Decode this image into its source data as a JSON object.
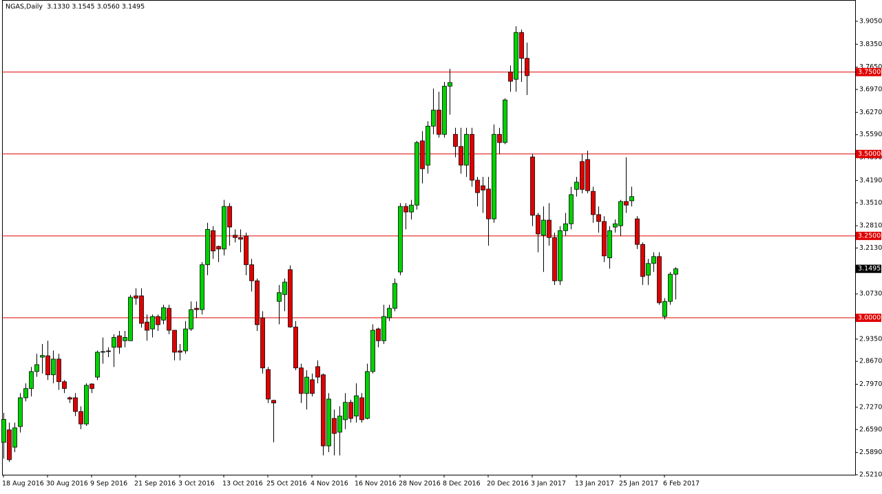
{
  "chart_data": {
    "type": "candlestick",
    "title": "NGAS,Daily  3.1330 3.1545 3.0560 3.1495",
    "x": [
      "18 Aug 2016",
      null,
      null,
      null,
      null,
      null,
      null,
      null,
      "30 Aug 2016",
      null,
      null,
      null,
      null,
      null,
      null,
      null,
      "9 Sep 2016",
      null,
      null,
      null,
      null,
      null,
      null,
      null,
      "21 Sep 2016",
      null,
      null,
      null,
      null,
      null,
      null,
      null,
      "3 Oct 2016",
      null,
      null,
      null,
      null,
      null,
      null,
      null,
      "13 Oct 2016",
      null,
      null,
      null,
      null,
      null,
      null,
      null,
      "25 Oct 2016",
      null,
      null,
      null,
      null,
      null,
      null,
      null,
      "4 Nov 2016",
      null,
      null,
      null,
      null,
      null,
      null,
      null,
      "16 Nov 2016",
      null,
      null,
      null,
      null,
      null,
      null,
      null,
      "28 Nov 2016",
      null,
      null,
      null,
      null,
      null,
      null,
      null,
      "8 Dec 2016",
      null,
      null,
      null,
      null,
      null,
      null,
      null,
      "20 Dec 2016",
      null,
      null,
      null,
      null,
      null,
      null,
      null,
      "3 Jan 2017",
      null,
      null,
      null,
      null,
      null,
      null,
      null,
      "13 Jan 2017",
      null,
      null,
      null,
      null,
      null,
      null,
      null,
      "25 Jan 2017",
      null,
      null,
      null,
      null,
      null,
      null,
      null,
      "6 Feb 2017",
      null,
      null
    ],
    "open": [
      2.62,
      2.658,
      2.605,
      2.668,
      2.756,
      2.784,
      2.836,
      2.88,
      2.884,
      2.826,
      2.874,
      2.805,
      2.756,
      2.756,
      2.714,
      2.676,
      2.798,
      2.819,
      2.895,
      2.899,
      2.91,
      2.945,
      2.93,
      2.93,
      3.067,
      3.067,
      2.987,
      2.966,
      3.004,
      2.993,
      3.029,
      2.962,
      2.899,
      2.899,
      2.966,
      3.029,
      3.025,
      3.162,
      3.266,
      3.218,
      3.21,
      3.34,
      3.252,
      3.245,
      3.25,
      3.162,
      3.113,
      3.0,
      2.842,
      2.748,
      3.05,
      3.071,
      3.147,
      2.972,
      2.847,
      2.769,
      2.811,
      2.851,
      2.826,
      2.609,
      2.693,
      2.651,
      2.689,
      2.742,
      2.7,
      2.756,
      2.693,
      2.836,
      2.966,
      2.93,
      3.0,
      3.029,
      3.14,
      3.34,
      3.323,
      3.344,
      3.54,
      3.466,
      3.585,
      3.634,
      3.56,
      3.707,
      3.56,
      3.523,
      3.466,
      3.56,
      3.42,
      3.403,
      3.393,
      3.302,
      3.56,
      3.535,
      3.75,
      3.728,
      3.871,
      3.792,
      3.491,
      3.313,
      3.252,
      3.298,
      3.245,
      3.113,
      3.266,
      3.287,
      3.392,
      3.477,
      3.483,
      3.386,
      3.315,
      3.294,
      3.183,
      3.277,
      3.281,
      3.355,
      3.357,
      3.302,
      3.224,
      3.13,
      3.166,
      3.187,
      3.004,
      3.05,
      3.133
    ],
    "high": [
      2.71,
      2.68,
      2.68,
      2.77,
      2.8,
      2.85,
      2.89,
      2.92,
      2.93,
      2.9,
      2.89,
      2.81,
      2.76,
      2.77,
      2.73,
      2.8,
      2.8,
      2.9,
      2.94,
      2.91,
      2.95,
      2.96,
      2.96,
      3.07,
      3.09,
      3.09,
      3.01,
      3.01,
      3.01,
      3.04,
      3.04,
      2.96,
      2.92,
      2.99,
      3.05,
      3.05,
      3.17,
      3.29,
      3.28,
      3.22,
      3.36,
      3.35,
      3.27,
      3.27,
      3.26,
      3.18,
      3.12,
      3.02,
      2.85,
      2.75,
      3.1,
      3.12,
      3.16,
      2.99,
      2.86,
      2.84,
      2.83,
      2.87,
      2.83,
      2.77,
      2.72,
      2.73,
      2.77,
      2.75,
      2.8,
      2.77,
      2.86,
      2.98,
      2.97,
      3.04,
      3.04,
      3.12,
      3.35,
      3.35,
      3.36,
      3.54,
      3.57,
      3.6,
      3.7,
      3.69,
      3.72,
      3.76,
      3.58,
      3.58,
      3.58,
      3.58,
      3.43,
      3.43,
      3.43,
      3.59,
      3.58,
      3.67,
      3.77,
      3.89,
      3.88,
      3.84,
      3.5,
      3.32,
      3.34,
      3.35,
      3.26,
      3.28,
      3.32,
      3.4,
      3.43,
      3.5,
      3.51,
      3.4,
      3.34,
      3.31,
      3.28,
      3.3,
      3.36,
      3.49,
      3.4,
      3.31,
      3.23,
      3.18,
      3.2,
      3.2,
      3.06,
      3.14,
      3.1545
    ],
    "low": [
      2.57,
      2.56,
      2.59,
      2.65,
      2.745,
      2.76,
      2.82,
      2.83,
      2.81,
      2.8,
      2.78,
      2.77,
      2.74,
      2.7,
      2.66,
      2.67,
      2.77,
      2.81,
      2.86,
      2.88,
      2.85,
      2.89,
      2.91,
      2.93,
      3.04,
      2.97,
      2.93,
      2.94,
      2.96,
      2.98,
      2.95,
      2.87,
      2.87,
      2.89,
      2.96,
      3.0,
      3.01,
      3.13,
      3.18,
      3.17,
      3.19,
      3.22,
      3.23,
      3.2,
      3.13,
      3.08,
      2.96,
      2.83,
      2.74,
      2.62,
      2.98,
      3.02,
      2.97,
      2.84,
      2.74,
      2.72,
      2.76,
      2.8,
      2.58,
      2.59,
      2.58,
      2.58,
      2.66,
      2.68,
      2.68,
      2.68,
      2.69,
      2.83,
      2.91,
      2.92,
      2.99,
      3.02,
      3.13,
      3.27,
      3.3,
      3.33,
      3.41,
      3.44,
      3.56,
      3.55,
      3.55,
      3.62,
      3.49,
      3.44,
      3.43,
      3.4,
      3.34,
      3.32,
      3.22,
      3.29,
      3.5,
      3.53,
      3.69,
      3.69,
      3.72,
      3.68,
      3.28,
      3.2,
      3.14,
      3.22,
      3.1,
      3.1,
      3.25,
      3.27,
      3.37,
      3.38,
      3.38,
      3.29,
      3.26,
      3.17,
      3.15,
      3.26,
      3.25,
      3.32,
      3.34,
      3.21,
      3.1,
      3.1,
      3.14,
      3.04,
      2.995,
      3.04,
      3.056
    ],
    "close": [
      2.69,
      2.567,
      2.664,
      2.756,
      2.784,
      2.836,
      2.857,
      2.885,
      2.826,
      2.874,
      2.805,
      2.784,
      2.752,
      2.714,
      2.676,
      2.794,
      2.784,
      2.895,
      2.897,
      2.897,
      2.94,
      2.91,
      2.94,
      3.063,
      3.06,
      2.983,
      2.962,
      3.004,
      2.979,
      3.031,
      2.962,
      2.895,
      2.895,
      2.966,
      3.025,
      3.025,
      3.162,
      3.27,
      3.204,
      3.21,
      3.34,
      3.277,
      3.245,
      3.24,
      3.162,
      3.113,
      2.979,
      2.847,
      2.752,
      2.74,
      3.077,
      3.109,
      2.972,
      2.847,
      2.769,
      2.819,
      2.769,
      2.819,
      2.609,
      2.752,
      2.647,
      2.7,
      2.742,
      2.693,
      2.762,
      2.689,
      2.836,
      2.962,
      2.93,
      3.004,
      3.029,
      3.105,
      3.34,
      3.323,
      3.344,
      3.535,
      3.455,
      3.585,
      3.634,
      3.56,
      3.707,
      3.718,
      3.523,
      3.466,
      3.56,
      3.42,
      3.382,
      3.39,
      3.302,
      3.56,
      3.535,
      3.665,
      3.722,
      3.871,
      3.792,
      3.739,
      3.313,
      3.256,
      3.298,
      3.245,
      3.113,
      3.266,
      3.287,
      3.376,
      3.414,
      3.392,
      3.388,
      3.315,
      3.294,
      3.189,
      3.266,
      3.287,
      3.355,
      3.344,
      3.37,
      3.224,
      3.126,
      3.166,
      3.187,
      3.046,
      3.05,
      3.133,
      3.1495
    ],
    "up_color": "#00d200",
    "down_color": "#e00000",
    "ylim": [
      2.521,
      3.97
    ],
    "yticks": [
      {
        "value": 3.905,
        "label": "3.9050"
      },
      {
        "value": 3.835,
        "label": "3.8350"
      },
      {
        "value": 3.765,
        "label": "3.7650"
      },
      {
        "value": 3.697,
        "label": "3.6970"
      },
      {
        "value": 3.627,
        "label": "3.6270"
      },
      {
        "value": 3.559,
        "label": "3.5590"
      },
      {
        "value": 3.489,
        "label": "3.4890"
      },
      {
        "value": 3.419,
        "label": "3.4190"
      },
      {
        "value": 3.351,
        "label": "3.3510"
      },
      {
        "value": 3.281,
        "label": "3.2810"
      },
      {
        "value": 3.213,
        "label": "3.2130"
      },
      {
        "value": 3.073,
        "label": "3.0730"
      },
      {
        "value": 2.935,
        "label": "2.9350"
      },
      {
        "value": 2.867,
        "label": "2.8670"
      },
      {
        "value": 2.797,
        "label": "2.7970"
      },
      {
        "value": 2.727,
        "label": "2.7270"
      },
      {
        "value": 2.659,
        "label": "2.6590"
      },
      {
        "value": 2.589,
        "label": "2.5890"
      },
      {
        "value": 2.521,
        "label": "2.5210"
      }
    ],
    "levels": [
      {
        "value": 3.75,
        "label": "3.7500"
      },
      {
        "value": 3.5,
        "label": "3.5000"
      },
      {
        "value": 3.25,
        "label": "3.2500"
      },
      {
        "value": 3.0,
        "label": "3.0000"
      }
    ],
    "level_color": "#e00000",
    "last_price": {
      "value": 3.1495,
      "label": "3.1495"
    }
  }
}
